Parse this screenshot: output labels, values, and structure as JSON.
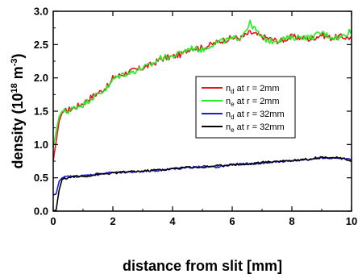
{
  "chart_data": {
    "type": "line",
    "xlabel": "distance from slit [mm]",
    "ylabel_main": "density (10",
    "ylabel_exp": "18",
    "ylabel_unit": " m",
    "ylabel_unit_exp": "-3",
    "ylabel_close": ")",
    "xlim": [
      0,
      10
    ],
    "ylim": [
      0,
      3.0
    ],
    "x_ticks": [
      {
        "value": 0,
        "label": "0"
      },
      {
        "value": 2,
        "label": "2"
      },
      {
        "value": 4,
        "label": "4"
      },
      {
        "value": 6,
        "label": "6"
      },
      {
        "value": 8,
        "label": "8"
      },
      {
        "value": 10,
        "label": "10"
      }
    ],
    "y_ticks": [
      {
        "value": 0.0,
        "label": "0.0"
      },
      {
        "value": 0.5,
        "label": "0.5"
      },
      {
        "value": 1.0,
        "label": "1.0"
      },
      {
        "value": 1.5,
        "label": "1.5"
      },
      {
        "value": 2.0,
        "label": "2.0"
      },
      {
        "value": 2.5,
        "label": "2.5"
      },
      {
        "value": 3.0,
        "label": "3.0"
      }
    ],
    "grid": false,
    "legend_position": "right-center",
    "series": [
      {
        "name": "n_d at r = 2mm",
        "legend_main": "n",
        "legend_sub": "d",
        "legend_rest": " at r = 2mm",
        "color": "#e8141c",
        "x": [
          0.0,
          0.1,
          0.2,
          0.3,
          0.5,
          0.7,
          1.0,
          1.3,
          1.6,
          1.9,
          2.0,
          2.3,
          2.6,
          3.0,
          3.3,
          3.6,
          4.0,
          4.3,
          4.6,
          5.0,
          5.3,
          5.6,
          6.0,
          6.3,
          6.6,
          7.0,
          7.3,
          7.6,
          8.0,
          8.3,
          8.6,
          9.0,
          9.3,
          9.6,
          10.0
        ],
        "y": [
          0.75,
          1.05,
          1.35,
          1.48,
          1.52,
          1.55,
          1.62,
          1.72,
          1.8,
          1.9,
          2.0,
          2.05,
          2.1,
          2.15,
          2.2,
          2.28,
          2.32,
          2.35,
          2.45,
          2.45,
          2.5,
          2.55,
          2.6,
          2.6,
          2.68,
          2.62,
          2.58,
          2.55,
          2.62,
          2.6,
          2.58,
          2.65,
          2.6,
          2.62,
          2.6
        ]
      },
      {
        "name": "n_e at r = 2mm",
        "legend_main": "n",
        "legend_sub": "e",
        "legend_rest": " at r = 2mm",
        "color": "#22ee22",
        "x": [
          0.0,
          0.1,
          0.2,
          0.3,
          0.5,
          0.7,
          1.0,
          1.3,
          1.6,
          1.9,
          2.0,
          2.3,
          2.6,
          3.0,
          3.3,
          3.6,
          4.0,
          4.3,
          4.6,
          5.0,
          5.3,
          5.6,
          6.0,
          6.3,
          6.6,
          7.0,
          7.3,
          7.6,
          8.0,
          8.3,
          8.6,
          9.0,
          9.3,
          9.6,
          10.0
        ],
        "y": [
          0.95,
          1.2,
          1.42,
          1.5,
          1.5,
          1.55,
          1.6,
          1.7,
          1.78,
          1.88,
          1.98,
          2.05,
          2.08,
          2.15,
          2.2,
          2.3,
          2.32,
          2.38,
          2.45,
          2.42,
          2.5,
          2.55,
          2.58,
          2.62,
          2.82,
          2.6,
          2.55,
          2.58,
          2.6,
          2.62,
          2.6,
          2.68,
          2.62,
          2.6,
          2.72
        ]
      },
      {
        "name": "n_d at r = 32mm",
        "legend_main": "n",
        "legend_sub": "d",
        "legend_rest": " at r = 32mm",
        "color": "#1c1cdc",
        "x": [
          0.0,
          0.1,
          0.2,
          0.3,
          0.5,
          0.7,
          1.0,
          1.5,
          2.0,
          2.5,
          3.0,
          3.5,
          4.0,
          4.5,
          5.0,
          5.5,
          6.0,
          6.5,
          7.0,
          7.5,
          8.0,
          8.5,
          9.0,
          9.5,
          10.0
        ],
        "y": [
          0.24,
          0.26,
          0.45,
          0.5,
          0.52,
          0.52,
          0.53,
          0.56,
          0.58,
          0.58,
          0.6,
          0.61,
          0.64,
          0.65,
          0.67,
          0.66,
          0.7,
          0.71,
          0.72,
          0.74,
          0.76,
          0.77,
          0.8,
          0.79,
          0.78
        ]
      },
      {
        "name": "n_e at r = 32mm",
        "legend_main": "n",
        "legend_sub": "e",
        "legend_rest": " at r = 32mm",
        "color": "#000000",
        "x": [
          0.0,
          0.1,
          0.2,
          0.3,
          0.5,
          0.7,
          1.0,
          1.5,
          2.0,
          2.5,
          3.0,
          3.5,
          4.0,
          4.5,
          5.0,
          5.5,
          6.0,
          6.5,
          7.0,
          7.5,
          8.0,
          8.5,
          9.0,
          9.5,
          10.0
        ],
        "y": [
          0.0,
          0.02,
          0.32,
          0.48,
          0.5,
          0.52,
          0.52,
          0.55,
          0.57,
          0.59,
          0.6,
          0.62,
          0.63,
          0.66,
          0.66,
          0.68,
          0.7,
          0.7,
          0.73,
          0.75,
          0.76,
          0.78,
          0.81,
          0.8,
          0.76
        ]
      }
    ]
  }
}
